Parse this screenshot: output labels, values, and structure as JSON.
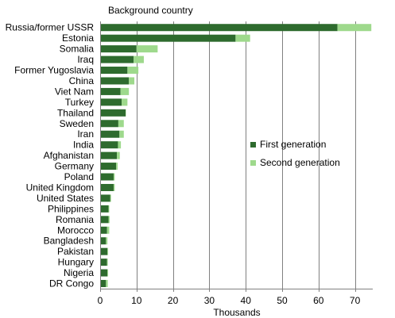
{
  "chart_data": {
    "type": "bar",
    "orientation": "horizontal",
    "stacked": true,
    "title": "Background country",
    "xlabel": "Thousands",
    "ylabel": "",
    "xlim": [
      0,
      75
    ],
    "xticks": [
      0,
      10,
      20,
      30,
      40,
      50,
      60,
      70
    ],
    "grid": "vertical",
    "legend_position": "right",
    "categories": [
      "Russia/former USSR",
      "Estonia",
      "Somalia",
      "Iraq",
      "Former Yugoslavia",
      "China",
      "Viet Nam",
      "Turkey",
      "Thailand",
      "Sweden",
      "Iran",
      "India",
      "Afghanistan",
      "Germany",
      "Poland",
      "United Kingdom",
      "United States",
      "Philippines",
      "Romania",
      "Morocco",
      "Bangladesh",
      "Pakistan",
      "Hungary",
      "Nigeria",
      "DR Congo"
    ],
    "series": [
      {
        "name": "First generation",
        "color": "#2e6b2e",
        "values": [
          65.2,
          37.2,
          10.0,
          9.2,
          7.5,
          7.9,
          5.6,
          5.9,
          7.0,
          5.0,
          5.3,
          4.9,
          4.6,
          4.4,
          3.7,
          3.7,
          2.8,
          2.3,
          2.3,
          1.9,
          1.6,
          2.0,
          1.9,
          2.0,
          1.6
        ]
      },
      {
        "name": "Second generation",
        "color": "#9ed98c",
        "values": [
          9.3,
          4.0,
          5.8,
          2.8,
          3.0,
          1.5,
          2.3,
          1.6,
          0.1,
          1.5,
          1.2,
          0.8,
          0.8,
          0.4,
          0.3,
          0.3,
          0.2,
          0.2,
          0.3,
          0.6,
          0.4,
          0.2,
          0.2,
          0.2,
          0.5
        ]
      }
    ]
  }
}
